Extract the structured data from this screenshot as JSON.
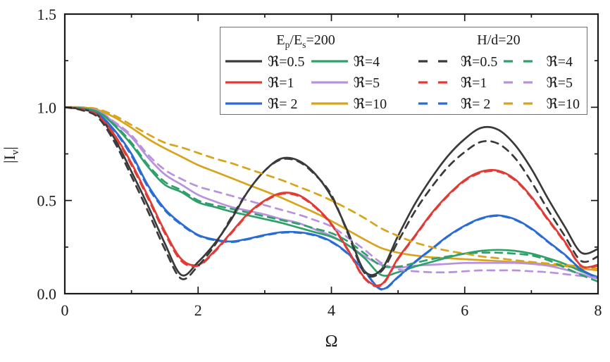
{
  "figure": {
    "background": "#ffffff",
    "frame_color": "#1a1a1a"
  },
  "chart_data": {
    "type": "line",
    "title": "",
    "xlabel": "Ω",
    "ylabel": "|I_v|",
    "ylabel_parts": [
      [
        "|I",
        false
      ],
      [
        "v",
        true
      ],
      [
        "|",
        false
      ]
    ],
    "xlim": [
      0,
      8
    ],
    "ylim": [
      0,
      1.5
    ],
    "grid": "off",
    "legend_position": "top-center-inside",
    "x_major_ticks": [
      {
        "value": 0,
        "label": "0"
      },
      {
        "value": 2,
        "label": "2"
      },
      {
        "value": 4,
        "label": "4"
      },
      {
        "value": 6,
        "label": "6"
      },
      {
        "value": 8,
        "label": "8"
      }
    ],
    "x_minor_ticks": [
      1,
      3,
      5,
      7
    ],
    "y_major_ticks": [
      {
        "value": 0.0,
        "label": "0.0"
      },
      {
        "value": 0.5,
        "label": "0.5"
      },
      {
        "value": 1.0,
        "label": "1.0"
      },
      {
        "value": 1.5,
        "label": "1.5"
      }
    ],
    "y_minor_ticks": [
      0.25,
      0.75,
      1.25
    ],
    "x": [
      0,
      0.25,
      0.5,
      0.75,
      1,
      1.25,
      1.5,
      1.75,
      2,
      2.25,
      2.5,
      2.75,
      3,
      3.25,
      3.5,
      3.75,
      4,
      4.25,
      4.5,
      4.75,
      5,
      5.25,
      5.5,
      5.75,
      6,
      6.25,
      6.5,
      6.75,
      7,
      7.25,
      7.5,
      7.75,
      8
    ],
    "series": [
      {
        "name": "Ep/Es=200 ℜ=10",
        "group": "Ep/Es=200",
        "R": "10",
        "style": "solid",
        "color": "#d8a41a",
        "values": [
          1.0,
          1.0,
          0.985,
          0.945,
          0.89,
          0.83,
          0.78,
          0.735,
          0.69,
          0.655,
          0.62,
          0.585,
          0.55,
          0.515,
          0.475,
          0.435,
          0.39,
          0.34,
          0.29,
          0.245,
          0.22,
          0.205,
          0.195,
          0.19,
          0.185,
          0.18,
          0.175,
          0.17,
          0.165,
          0.155,
          0.148,
          0.135,
          0.125
        ]
      },
      {
        "name": "Ep/Es=200 ℜ=5",
        "group": "Ep/Es=200",
        "R": "5",
        "style": "solid",
        "color": "#b892de",
        "values": [
          1.0,
          0.995,
          0.98,
          0.915,
          0.84,
          0.73,
          0.64,
          0.585,
          0.53,
          0.495,
          0.465,
          0.445,
          0.425,
          0.4,
          0.38,
          0.345,
          0.31,
          0.26,
          0.2,
          0.155,
          0.14,
          0.15,
          0.155,
          0.16,
          0.165,
          0.165,
          0.165,
          0.165,
          0.16,
          0.15,
          0.13,
          0.105,
          0.08
        ]
      },
      {
        "name": "Ep/Es=200 ℜ=4",
        "group": "Ep/Es=200",
        "R": "4",
        "style": "solid",
        "color": "#2fa06a",
        "values": [
          1.0,
          0.995,
          0.975,
          0.9,
          0.8,
          0.68,
          0.585,
          0.545,
          0.49,
          0.465,
          0.44,
          0.42,
          0.4,
          0.38,
          0.355,
          0.33,
          0.305,
          0.26,
          0.19,
          0.1,
          0.115,
          0.145,
          0.17,
          0.195,
          0.215,
          0.23,
          0.235,
          0.23,
          0.215,
          0.19,
          0.16,
          0.12,
          0.09
        ]
      },
      {
        "name": "Ep/Es=200 ℜ=2",
        "group": "Ep/Es=200",
        "R": "2",
        "style": "solid",
        "color": "#2b6bd4",
        "values": [
          1.0,
          0.99,
          0.965,
          0.875,
          0.75,
          0.58,
          0.455,
          0.375,
          0.315,
          0.29,
          0.28,
          0.295,
          0.315,
          0.33,
          0.33,
          0.315,
          0.28,
          0.215,
          0.12,
          0.025,
          0.09,
          0.17,
          0.24,
          0.31,
          0.365,
          0.405,
          0.42,
          0.4,
          0.35,
          0.28,
          0.21,
          0.13,
          0.085
        ]
      },
      {
        "name": "Ep/Es=200 ℜ=1",
        "group": "Ep/Es=200",
        "R": "1",
        "style": "solid",
        "color": "#e03c37",
        "values": [
          1.0,
          0.99,
          0.96,
          0.85,
          0.7,
          0.52,
          0.335,
          0.185,
          0.155,
          0.23,
          0.33,
          0.43,
          0.5,
          0.54,
          0.53,
          0.47,
          0.375,
          0.235,
          0.085,
          0.05,
          0.19,
          0.31,
          0.43,
          0.53,
          0.61,
          0.655,
          0.66,
          0.615,
          0.52,
          0.4,
          0.28,
          0.15,
          0.155
        ]
      },
      {
        "name": "Ep/Es=200 ℜ=0.5",
        "group": "Ep/Es=200",
        "R": "0.5",
        "style": "solid",
        "color": "#3a3a3a",
        "values": [
          1.0,
          0.99,
          0.955,
          0.83,
          0.655,
          0.47,
          0.27,
          0.1,
          0.17,
          0.27,
          0.4,
          0.55,
          0.66,
          0.725,
          0.715,
          0.645,
          0.52,
          0.33,
          0.12,
          0.13,
          0.31,
          0.48,
          0.62,
          0.74,
          0.83,
          0.89,
          0.88,
          0.8,
          0.67,
          0.51,
          0.36,
          0.22,
          0.24
        ]
      },
      {
        "name": "H/d=20 ℜ=10",
        "group": "H/d=20",
        "R": "10",
        "style": "dashed",
        "color": "#d8a41a",
        "values": [
          1.0,
          1.0,
          0.99,
          0.955,
          0.905,
          0.855,
          0.81,
          0.785,
          0.755,
          0.725,
          0.7,
          0.67,
          0.64,
          0.61,
          0.575,
          0.54,
          0.5,
          0.455,
          0.405,
          0.35,
          0.31,
          0.275,
          0.25,
          0.23,
          0.215,
          0.2,
          0.19,
          0.18,
          0.17,
          0.162,
          0.155,
          0.145,
          0.135
        ]
      },
      {
        "name": "H/d=20 ℜ=5",
        "group": "H/d=20",
        "R": "5",
        "style": "dashed",
        "color": "#b892de",
        "values": [
          1.0,
          0.995,
          0.98,
          0.92,
          0.85,
          0.745,
          0.665,
          0.615,
          0.575,
          0.55,
          0.525,
          0.5,
          0.475,
          0.45,
          0.425,
          0.395,
          0.36,
          0.3,
          0.235,
          0.165,
          0.13,
          0.12,
          0.115,
          0.115,
          0.12,
          0.125,
          0.125,
          0.125,
          0.12,
          0.115,
          0.105,
          0.095,
          0.085
        ]
      },
      {
        "name": "H/d=20 ℜ=4",
        "group": "H/d=20",
        "R": "4",
        "style": "dashed",
        "color": "#2fa06a",
        "values": [
          1.0,
          0.995,
          0.975,
          0.905,
          0.81,
          0.69,
          0.6,
          0.555,
          0.5,
          0.475,
          0.455,
          0.435,
          0.415,
          0.395,
          0.375,
          0.35,
          0.325,
          0.28,
          0.215,
          0.15,
          0.145,
          0.165,
          0.185,
          0.2,
          0.215,
          0.22,
          0.22,
          0.215,
          0.205,
          0.18,
          0.14,
          0.1,
          0.065
        ]
      },
      {
        "name": "H/d=20 ℜ=2",
        "group": "H/d=20",
        "R": "2",
        "style": "dashed",
        "color": "#2b6bd4",
        "values": [
          1.0,
          0.99,
          0.96,
          0.87,
          0.74,
          0.57,
          0.448,
          0.37,
          0.312,
          0.287,
          0.277,
          0.292,
          0.312,
          0.327,
          0.327,
          0.312,
          0.277,
          0.212,
          0.117,
          0.022,
          0.087,
          0.167,
          0.237,
          0.307,
          0.362,
          0.402,
          0.417,
          0.397,
          0.347,
          0.277,
          0.207,
          0.127,
          0.085
        ]
      },
      {
        "name": "H/d=20 ℜ=1",
        "group": "H/d=20",
        "R": "1",
        "style": "dashed",
        "color": "#e03c37",
        "values": [
          1.0,
          0.99,
          0.955,
          0.845,
          0.69,
          0.51,
          0.325,
          0.175,
          0.15,
          0.225,
          0.325,
          0.425,
          0.495,
          0.535,
          0.525,
          0.465,
          0.37,
          0.23,
          0.08,
          0.045,
          0.185,
          0.305,
          0.425,
          0.525,
          0.605,
          0.65,
          0.655,
          0.61,
          0.515,
          0.395,
          0.275,
          0.148,
          0.15
        ]
      },
      {
        "name": "H/d=20 ℜ=0.5",
        "group": "H/d=20",
        "R": "0.5",
        "style": "dashed",
        "color": "#3a3a3a",
        "values": [
          1.0,
          0.985,
          0.945,
          0.81,
          0.63,
          0.44,
          0.24,
          0.08,
          0.15,
          0.26,
          0.41,
          0.55,
          0.66,
          0.72,
          0.71,
          0.64,
          0.53,
          0.32,
          0.11,
          0.12,
          0.28,
          0.44,
          0.57,
          0.68,
          0.76,
          0.815,
          0.805,
          0.73,
          0.6,
          0.45,
          0.31,
          0.175,
          0.2
        ]
      }
    ]
  },
  "legend": {
    "groups": [
      {
        "title": "Ep/Es=200",
        "title_parts": [
          [
            "E",
            false
          ],
          [
            "p",
            true
          ],
          [
            "/E",
            false
          ],
          [
            "s",
            true
          ],
          [
            "=200",
            false
          ]
        ],
        "line_style": "solid",
        "entries": [
          {
            "label": "ℜ=0.5",
            "color": "#3a3a3a"
          },
          {
            "label": "ℜ=4",
            "color": "#2fa06a"
          },
          {
            "label": "ℜ=1",
            "color": "#e03c37"
          },
          {
            "label": "ℜ=5",
            "color": "#b892de"
          },
          {
            "label": "ℜ= 2",
            "color": "#2b6bd4"
          },
          {
            "label": "ℜ=10",
            "color": "#d8a41a"
          }
        ]
      },
      {
        "title": "H/d=20",
        "title_parts": [
          [
            "H/d=20",
            false
          ]
        ],
        "line_style": "dashed",
        "entries": [
          {
            "label": "ℜ=0.5",
            "color": "#3a3a3a"
          },
          {
            "label": "ℜ=4",
            "color": "#2fa06a"
          },
          {
            "label": "ℜ=1",
            "color": "#e03c37"
          },
          {
            "label": "ℜ=5",
            "color": "#b892de"
          },
          {
            "label": "ℜ= 2",
            "color": "#2b6bd4"
          },
          {
            "label": "ℜ=10",
            "color": "#d8a41a"
          }
        ]
      }
    ]
  }
}
